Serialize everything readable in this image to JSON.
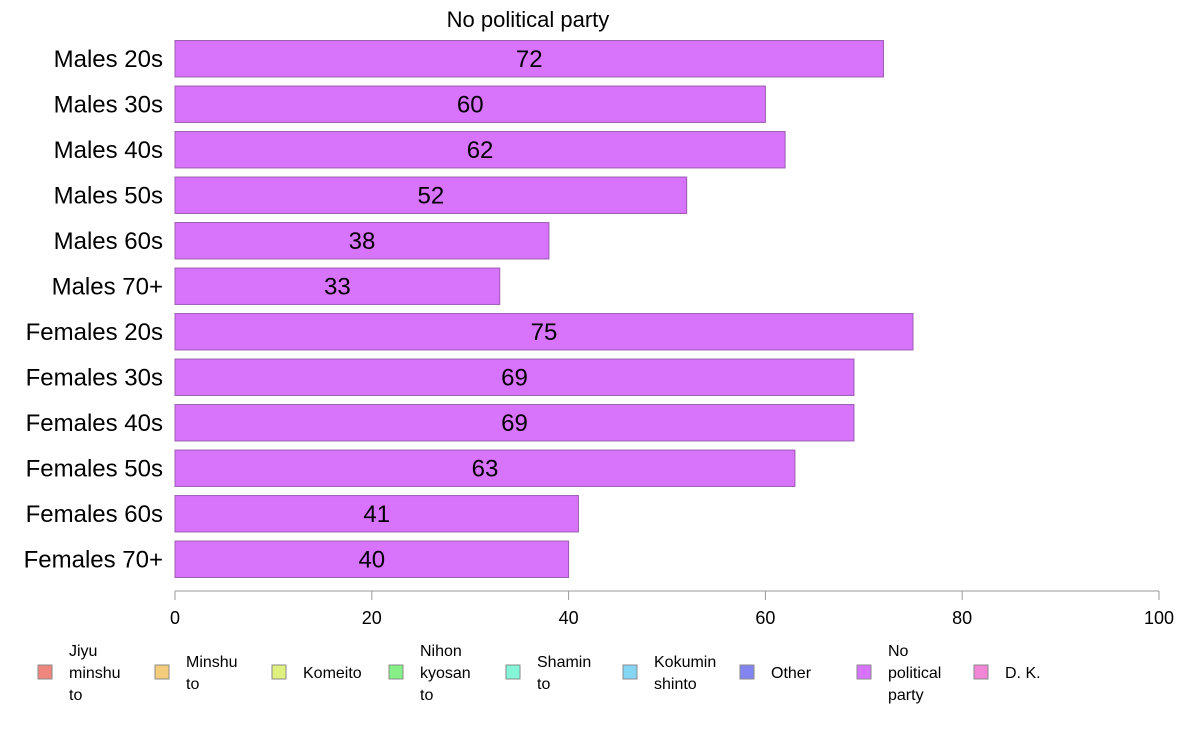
{
  "chart_data": {
    "type": "bar",
    "orientation": "horizontal",
    "title": "No political party",
    "categories": [
      "Males 20s",
      "Males 30s",
      "Males 40s",
      "Males 50s",
      "Males 60s",
      "Males 70+",
      "Females 20s",
      "Females 30s",
      "Females 40s",
      "Females 50s",
      "Females 60s",
      "Females 70+"
    ],
    "values": [
      72,
      60,
      62,
      52,
      38,
      33,
      75,
      69,
      69,
      63,
      41,
      40
    ],
    "value_labels": [
      "72",
      "60",
      "62",
      "52",
      "38",
      "33",
      "75",
      "69",
      "69",
      "63",
      "41",
      "40"
    ],
    "xlim": [
      0,
      100
    ],
    "xticks": [
      0,
      20,
      40,
      60,
      80,
      100
    ],
    "xtick_labels": [
      "0",
      "20",
      "40",
      "60",
      "80",
      "100"
    ],
    "bar_color": "#d873fc",
    "grid": false,
    "legend_position": "bottom",
    "legend": [
      {
        "label": [
          "Jiyu",
          "minshu",
          "to"
        ],
        "color": "#f0877f"
      },
      {
        "label": [
          "Minshu",
          "to"
        ],
        "color": "#f5cd7a"
      },
      {
        "label": [
          "Komeito"
        ],
        "color": "#dff07f"
      },
      {
        "label": [
          "Nihon",
          "kyosan",
          "to"
        ],
        "color": "#86ef86"
      },
      {
        "label": [
          "Shamin",
          "to"
        ],
        "color": "#84f5d6"
      },
      {
        "label": [
          "Kokumin",
          "shinto"
        ],
        "color": "#85d6f5"
      },
      {
        "label": [
          "Other"
        ],
        "color": "#8284f0"
      },
      {
        "label": [
          "No",
          "political",
          "party"
        ],
        "color": "#d873fc"
      },
      {
        "label": [
          "D. K."
        ],
        "color": "#f286d6"
      }
    ]
  }
}
